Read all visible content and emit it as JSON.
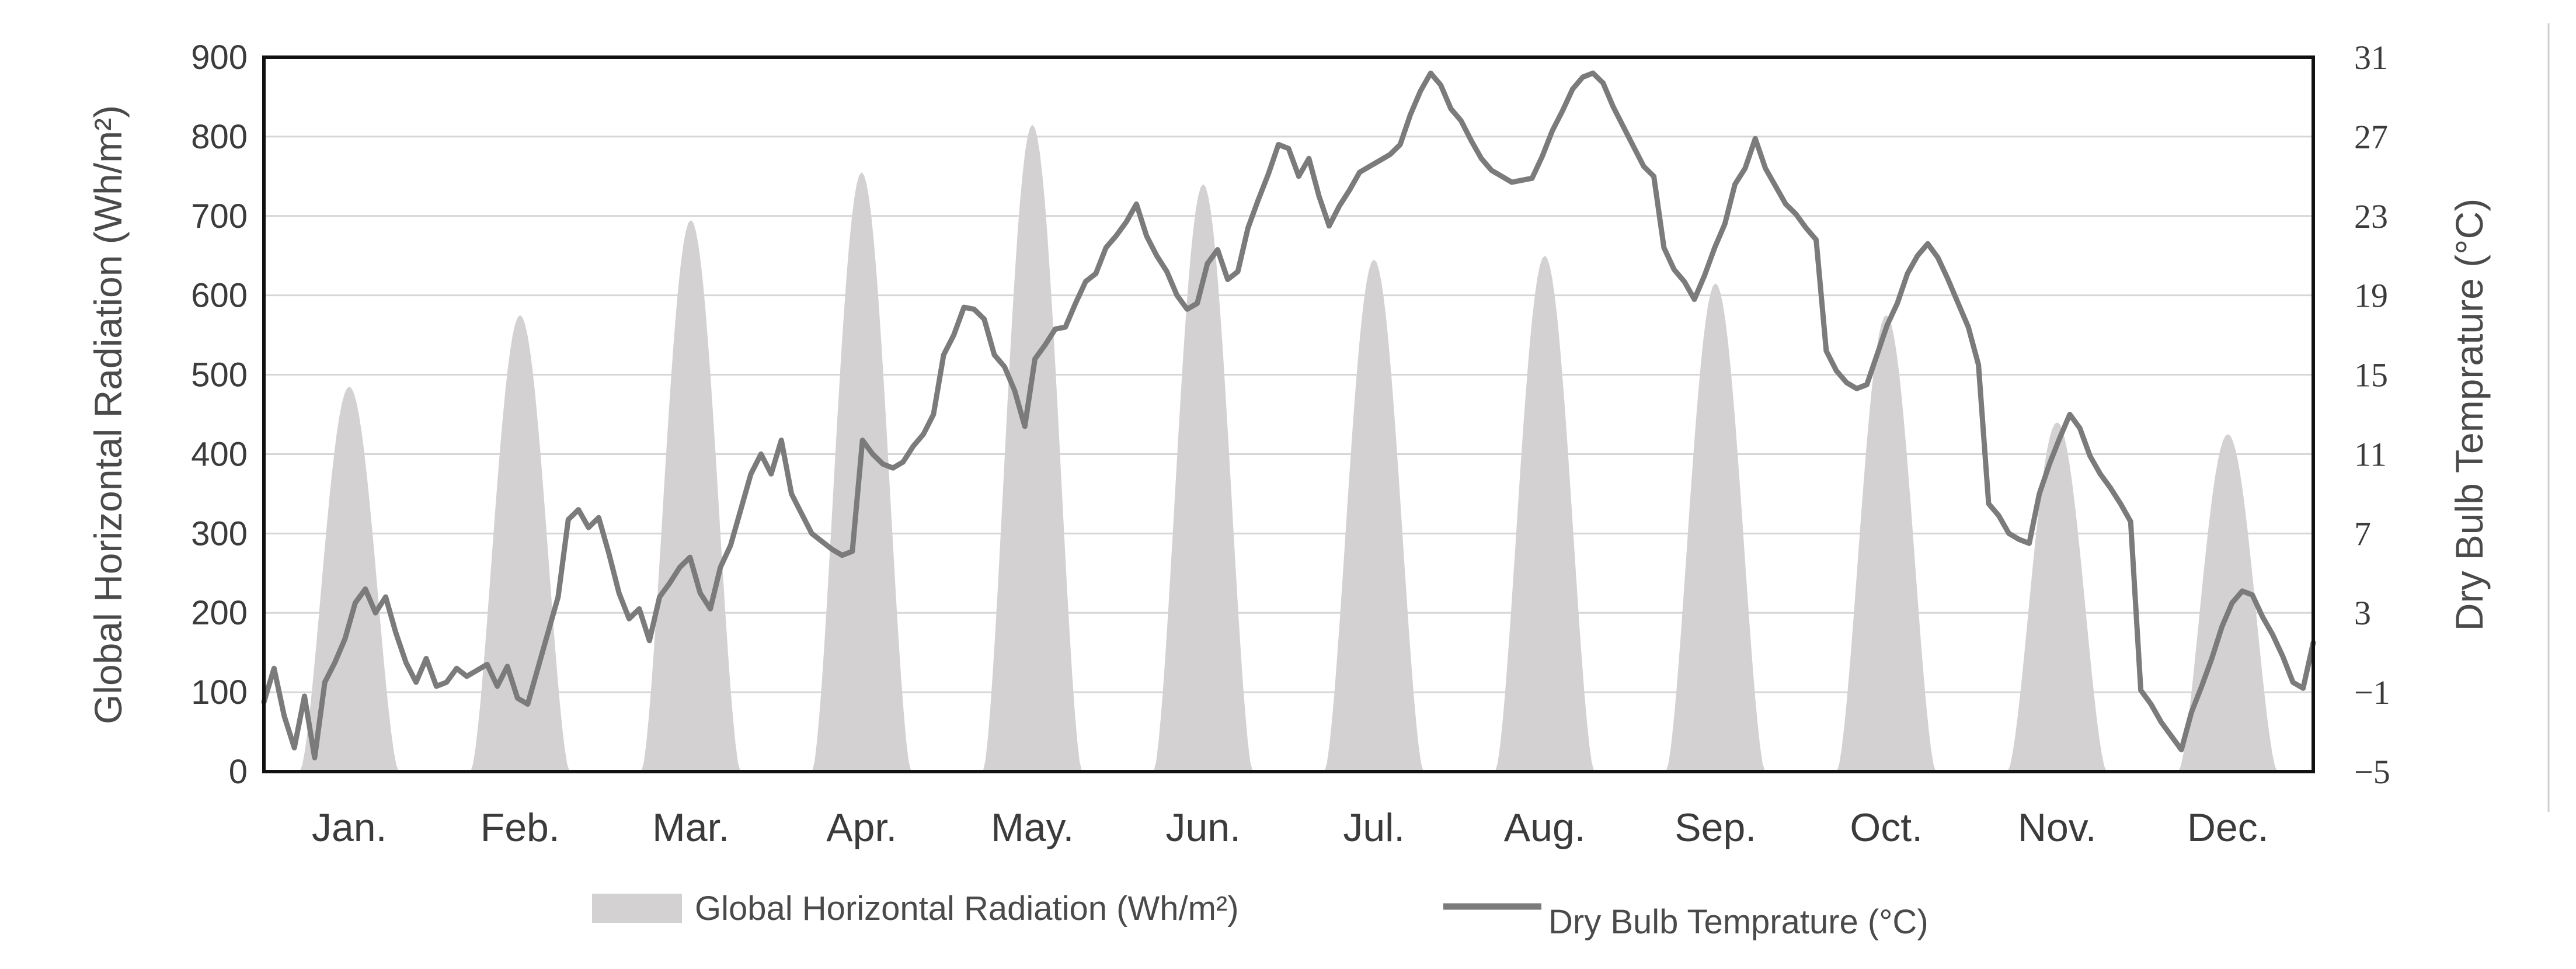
{
  "chart_data": {
    "type": "area-line-combo",
    "ylabel_left": "Global Horizontal Radiation (Wh/m²)",
    "ylabel_right": "Dry Bulb Temprature (°C)",
    "ylim_left": [
      0,
      900
    ],
    "ylim_right": [
      -5,
      31
    ],
    "yticks_left": [
      "0",
      "100",
      "200",
      "300",
      "400",
      "500",
      "600",
      "700",
      "800",
      "900"
    ],
    "yticks_right": [
      "−5",
      "−1",
      "3",
      "7",
      "11",
      "15",
      "19",
      "23",
      "27",
      "31"
    ],
    "months": [
      "Jan.",
      "Feb.",
      "Mar.",
      "Apr.",
      "May.",
      "Jun.",
      "Jul.",
      "Aug.",
      "Sep.",
      "Oct.",
      "Nov.",
      "Dec."
    ],
    "grid": true,
    "legend_position": "bottom",
    "series": [
      {
        "name": "Global Horizontal Radiation (Wh/m²)",
        "type": "area",
        "color": "#d3d1d1",
        "monthly_peak": [
          485,
          575,
          695,
          755,
          815,
          740,
          645,
          650,
          615,
          575,
          440,
          425
        ]
      },
      {
        "name": "Dry Bulb Temprature (°C)",
        "type": "line",
        "color": "#7b7b7b",
        "daily_samples": [
          -1.5,
          0.2,
          -2.2,
          -3.8,
          -1.2,
          -4.3,
          -0.5,
          0.5,
          1.7,
          3.5,
          4.2,
          3.0,
          3.8,
          2.0,
          0.5,
          -0.5,
          0.7,
          -0.7,
          -0.5,
          0.2,
          -0.2,
          0.1,
          0.4,
          -0.7,
          0.3,
          -1.3,
          -1.6,
          0.2,
          2.0,
          3.8,
          7.7,
          8.2,
          7.3,
          7.8,
          6.0,
          4.0,
          2.7,
          3.2,
          1.6,
          3.8,
          4.5,
          5.3,
          5.8,
          4.0,
          3.2,
          5.3,
          6.4,
          8.2,
          10.0,
          11.0,
          10.0,
          11.7,
          9.0,
          8.0,
          7.0,
          6.6,
          6.2,
          5.9,
          6.1,
          11.7,
          11.0,
          10.5,
          10.3,
          10.6,
          11.4,
          12.0,
          13.0,
          16.0,
          17.0,
          18.4,
          18.3,
          17.8,
          16.0,
          15.4,
          14.2,
          12.4,
          15.8,
          16.5,
          17.3,
          17.4,
          18.6,
          19.7,
          20.1,
          21.4,
          22.0,
          22.7,
          23.6,
          22.0,
          21.0,
          20.2,
          19.0,
          18.3,
          18.6,
          20.6,
          21.3,
          19.8,
          20.2,
          22.4,
          23.8,
          25.1,
          26.6,
          26.4,
          25.0,
          25.9,
          24.0,
          22.5,
          23.5,
          24.3,
          25.2,
          25.5,
          25.8,
          26.1,
          26.6,
          28.1,
          29.3,
          30.2,
          29.6,
          28.4,
          27.8,
          26.8,
          25.9,
          25.3,
          25.0,
          24.7,
          24.8,
          24.9,
          26.0,
          27.3,
          28.3,
          29.4,
          30.0,
          30.2,
          29.7,
          28.5,
          27.5,
          26.5,
          25.5,
          25.0,
          21.4,
          20.3,
          19.7,
          18.8,
          20.0,
          21.4,
          22.6,
          24.6,
          25.4,
          26.9,
          25.4,
          24.5,
          23.6,
          23.1,
          22.4,
          21.8,
          16.2,
          15.2,
          14.6,
          14.3,
          14.5,
          16.0,
          17.5,
          18.6,
          20.1,
          21.0,
          21.6,
          20.9,
          19.8,
          18.6,
          17.4,
          15.5,
          8.5,
          7.9,
          7.0,
          6.7,
          6.5,
          9.0,
          10.5,
          11.8,
          13.0,
          12.3,
          10.9,
          10.0,
          9.3,
          8.5,
          7.6,
          -0.9,
          -1.6,
          -2.5,
          -3.2,
          -3.9,
          -2.0,
          -0.7,
          0.7,
          2.3,
          3.5,
          4.1,
          3.9,
          2.8,
          1.9,
          0.8,
          -0.5,
          -0.8,
          1.5
        ]
      }
    ]
  }
}
